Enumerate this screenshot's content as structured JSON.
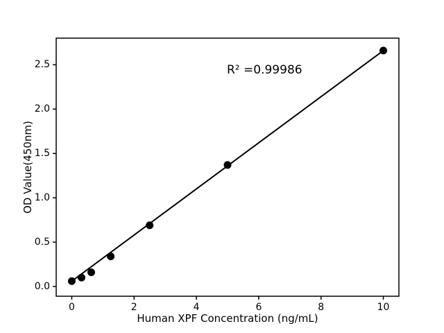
{
  "figure": {
    "background": "#ffffff"
  },
  "chart_data": {
    "type": "scatter",
    "title": "",
    "xlabel": "Human XPF Concentration (ng/mL)",
    "ylabel": "OD Value(450nm)",
    "annotation": "R² =0.99986",
    "r_squared": 0.99986,
    "x": [
      0,
      0.3125,
      0.625,
      1.25,
      2.5,
      5,
      10
    ],
    "y": [
      0.06,
      0.1,
      0.16,
      0.34,
      0.69,
      1.37,
      2.66
    ],
    "fit_line": {
      "x": [
        0,
        10
      ],
      "y": [
        0.06,
        2.66
      ]
    },
    "xlim": [
      -0.5,
      10.5
    ],
    "ylim": [
      -0.11,
      2.8
    ],
    "xticks": [
      0,
      2,
      4,
      6,
      8,
      10
    ],
    "xtick_labels": [
      "0",
      "2",
      "4",
      "6",
      "8",
      "10"
    ],
    "yticks": [
      0,
      0.5,
      1.0,
      1.5,
      2.0,
      2.5
    ],
    "ytick_labels": [
      "0.0",
      "0.5",
      "1.0",
      "1.5",
      "2.0",
      "2.5"
    ],
    "marker_color": "#000000",
    "line_color": "#000000",
    "axis_color": "#000000",
    "grid": false,
    "legend": null
  }
}
